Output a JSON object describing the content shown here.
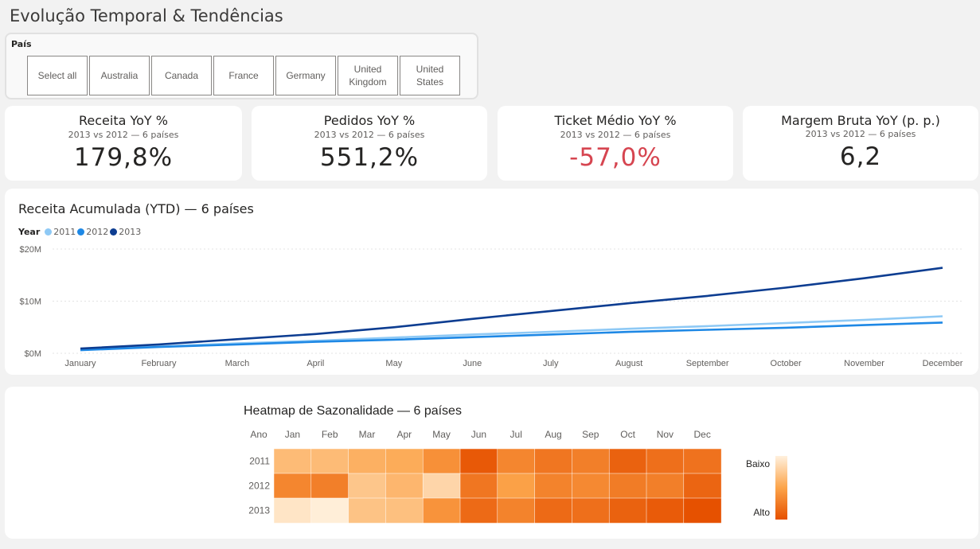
{
  "page": {
    "title": "Evolução Temporal & Tendências"
  },
  "slicer": {
    "title": "País",
    "options": [
      "Select all",
      "Australia",
      "Canada",
      "France",
      "Germany",
      "United Kingdom",
      "United States"
    ]
  },
  "kpis": [
    {
      "title": "Receita YoY %",
      "subtitle": "2013 vs 2012 — 6 países",
      "value": "179,8%",
      "negative": false
    },
    {
      "title": "Pedidos YoY %",
      "subtitle": "2013 vs 2012 — 6 países",
      "value": "551,2%",
      "negative": false
    },
    {
      "title": "Ticket Médio YoY %",
      "subtitle": "2013 vs 2012 — 6 países",
      "value": "-57,0%",
      "negative": true
    },
    {
      "title": "Margem Bruta YoY (p. p.)",
      "subtitle": "2013 vs 2012 — 6 países",
      "value": "6,2",
      "negative": false
    }
  ],
  "colors": {
    "y2011": "#8ec9f5",
    "y2012": "#1e88e5",
    "y2013": "#0d3d91",
    "negative": "#d64550",
    "heat_low": "#fff1de",
    "heat_high": "#e65100"
  },
  "chart_data": [
    {
      "type": "line",
      "title": "Receita Acumulada (YTD) — 6 países",
      "legend_title": "Year",
      "categories": [
        "January",
        "February",
        "March",
        "April",
        "May",
        "June",
        "July",
        "August",
        "September",
        "October",
        "November",
        "December"
      ],
      "y_ticks": [
        "$0M",
        "$10M",
        "$20M"
      ],
      "ylim": [
        0,
        20
      ],
      "grid": true,
      "legend_position": "top-left",
      "series": [
        {
          "name": "2011",
          "color": "#8ec9f5",
          "values": [
            0.7,
            1.3,
            1.9,
            2.4,
            3.0,
            3.6,
            4.1,
            4.7,
            5.2,
            5.8,
            6.4,
            7.1
          ]
        },
        {
          "name": "2012",
          "color": "#1e88e5",
          "values": [
            0.6,
            1.2,
            1.7,
            2.2,
            2.6,
            3.1,
            3.6,
            4.1,
            4.5,
            4.9,
            5.4,
            5.9
          ]
        },
        {
          "name": "2013",
          "color": "#0d3d91",
          "values": [
            0.9,
            1.7,
            2.7,
            3.7,
            5.0,
            6.6,
            8.1,
            9.6,
            11.0,
            12.6,
            14.4,
            16.4
          ]
        }
      ]
    },
    {
      "type": "heatmap",
      "title": "Heatmap de Sazonalidade — 6 países",
      "corner_label": "Ano",
      "columns": [
        "Jan",
        "Feb",
        "Mar",
        "Apr",
        "May",
        "Jun",
        "Jul",
        "Aug",
        "Sep",
        "Oct",
        "Nov",
        "Dec"
      ],
      "rows": [
        "2011",
        "2012",
        "2013"
      ],
      "values": [
        [
          0.35,
          0.35,
          0.42,
          0.45,
          0.62,
          0.95,
          0.68,
          0.78,
          0.72,
          0.9,
          0.82,
          0.8
        ],
        [
          0.68,
          0.72,
          0.28,
          0.38,
          0.18,
          0.78,
          0.52,
          0.7,
          0.66,
          0.74,
          0.72,
          0.88
        ],
        [
          0.08,
          0.02,
          0.3,
          0.32,
          0.6,
          0.85,
          0.7,
          0.85,
          0.82,
          0.9,
          0.94,
          1.0
        ]
      ],
      "legend_low": "Baixo",
      "legend_high": "Alto"
    }
  ]
}
